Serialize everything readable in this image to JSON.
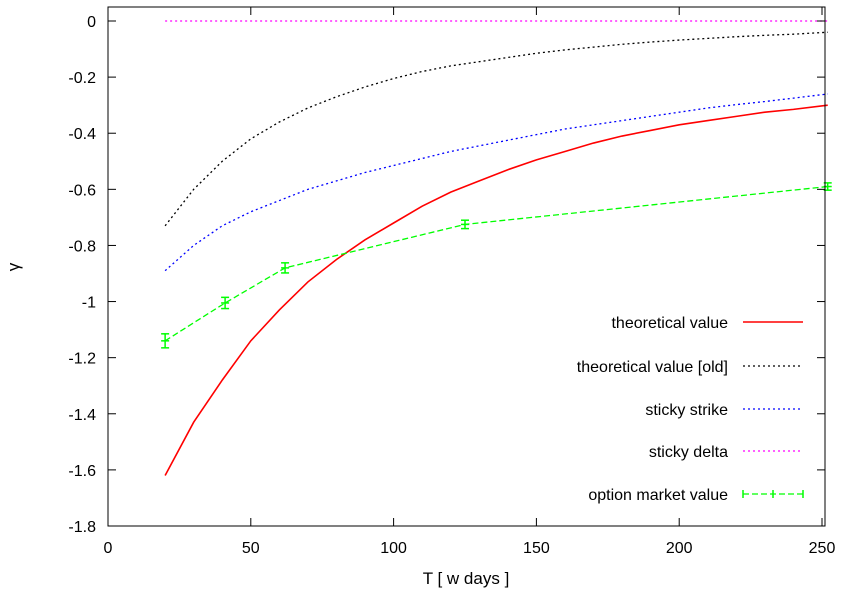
{
  "chart_data": {
    "type": "line",
    "xlabel": "T [ w days ]",
    "ylabel": "γ",
    "xlim": [
      0,
      252
    ],
    "ylim": [
      -1.8,
      0.05
    ],
    "x_ticks": [
      0,
      50,
      100,
      150,
      200,
      250
    ],
    "y_ticks": [
      0,
      -0.2,
      -0.4,
      -0.6,
      -0.8,
      -1,
      -1.2,
      -1.4,
      -1.6,
      -1.8
    ],
    "grid": false,
    "legend_position": "bottom-right",
    "series": [
      {
        "name": "theoretical value",
        "color": "#ff0000",
        "style": "solid",
        "x": [
          20,
          30,
          40,
          50,
          60,
          70,
          80,
          90,
          100,
          110,
          120,
          130,
          140,
          150,
          160,
          170,
          180,
          190,
          200,
          210,
          220,
          230,
          240,
          252
        ],
        "y": [
          -1.62,
          -1.43,
          -1.28,
          -1.14,
          -1.03,
          -0.93,
          -0.85,
          -0.78,
          -0.72,
          -0.66,
          -0.61,
          -0.57,
          -0.53,
          -0.495,
          -0.465,
          -0.435,
          -0.41,
          -0.39,
          -0.37,
          -0.355,
          -0.34,
          -0.325,
          -0.315,
          -0.3
        ]
      },
      {
        "name": "theoretical value [old]",
        "color": "#000000",
        "style": "dotted",
        "x": [
          20,
          30,
          40,
          50,
          60,
          70,
          80,
          90,
          100,
          110,
          120,
          130,
          140,
          150,
          160,
          170,
          180,
          190,
          200,
          210,
          220,
          230,
          240,
          252
        ],
        "y": [
          -0.73,
          -0.6,
          -0.5,
          -0.42,
          -0.36,
          -0.31,
          -0.27,
          -0.235,
          -0.205,
          -0.18,
          -0.16,
          -0.145,
          -0.13,
          -0.115,
          -0.103,
          -0.093,
          -0.083,
          -0.075,
          -0.068,
          -0.062,
          -0.056,
          -0.051,
          -0.047,
          -0.04
        ]
      },
      {
        "name": "sticky strike",
        "color": "#0000ff",
        "style": "dotted",
        "x": [
          20,
          30,
          40,
          50,
          60,
          70,
          80,
          90,
          100,
          110,
          120,
          130,
          140,
          150,
          160,
          170,
          180,
          190,
          200,
          210,
          220,
          230,
          240,
          252
        ],
        "y": [
          -0.89,
          -0.8,
          -0.73,
          -0.68,
          -0.64,
          -0.6,
          -0.57,
          -0.54,
          -0.515,
          -0.49,
          -0.465,
          -0.445,
          -0.425,
          -0.405,
          -0.385,
          -0.37,
          -0.355,
          -0.34,
          -0.325,
          -0.31,
          -0.298,
          -0.287,
          -0.275,
          -0.26
        ]
      },
      {
        "name": "sticky delta",
        "color": "#ff00ff",
        "style": "dotted",
        "x": [
          20,
          252
        ],
        "y": [
          0,
          0
        ]
      },
      {
        "name": "option market value",
        "color": "#00ff00",
        "style": "dashed",
        "marker": "plus",
        "errorbars": true,
        "x": [
          20,
          41,
          62,
          125,
          252
        ],
        "y": [
          -1.14,
          -1.005,
          -0.88,
          -0.725,
          -0.59
        ],
        "yerr": [
          0.025,
          0.02,
          0.018,
          0.015,
          0.013
        ]
      }
    ]
  }
}
